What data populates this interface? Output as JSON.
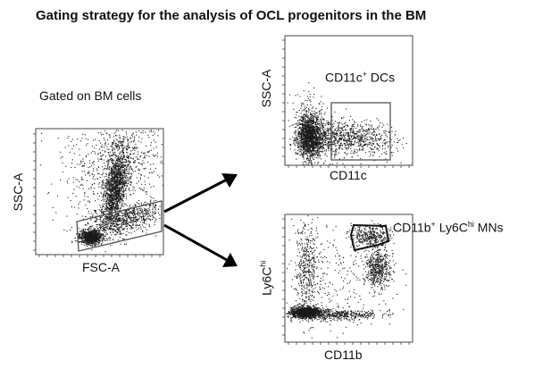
{
  "figure": {
    "title": "Gating strategy for the analysis of OCL progenitors in the BM",
    "gated_on": "Gated on BM cells"
  },
  "plots": {
    "left": {
      "xlabel": "FSC-A",
      "ylabel": "SSC-A"
    },
    "top_right": {
      "xlabel": "CD11c",
      "ylabel": "SSC-A",
      "gate_label_main": "CD11c",
      "gate_label_sup": "+",
      "gate_label_tail": " DCs"
    },
    "bottom_right": {
      "xlabel": "CD11b",
      "ylabel_main": "Ly6C",
      "ylabel_sup": "hi",
      "gate_label_a": "CD11b",
      "gate_label_a_sup": "+",
      "gate_label_b": " Ly6C",
      "gate_label_b_sup": "hi",
      "gate_label_c": " MNs"
    }
  },
  "colors": {
    "dots": "#1a1a1a",
    "frame": "#444444",
    "gate": "#555555",
    "arrow": "#000000"
  }
}
